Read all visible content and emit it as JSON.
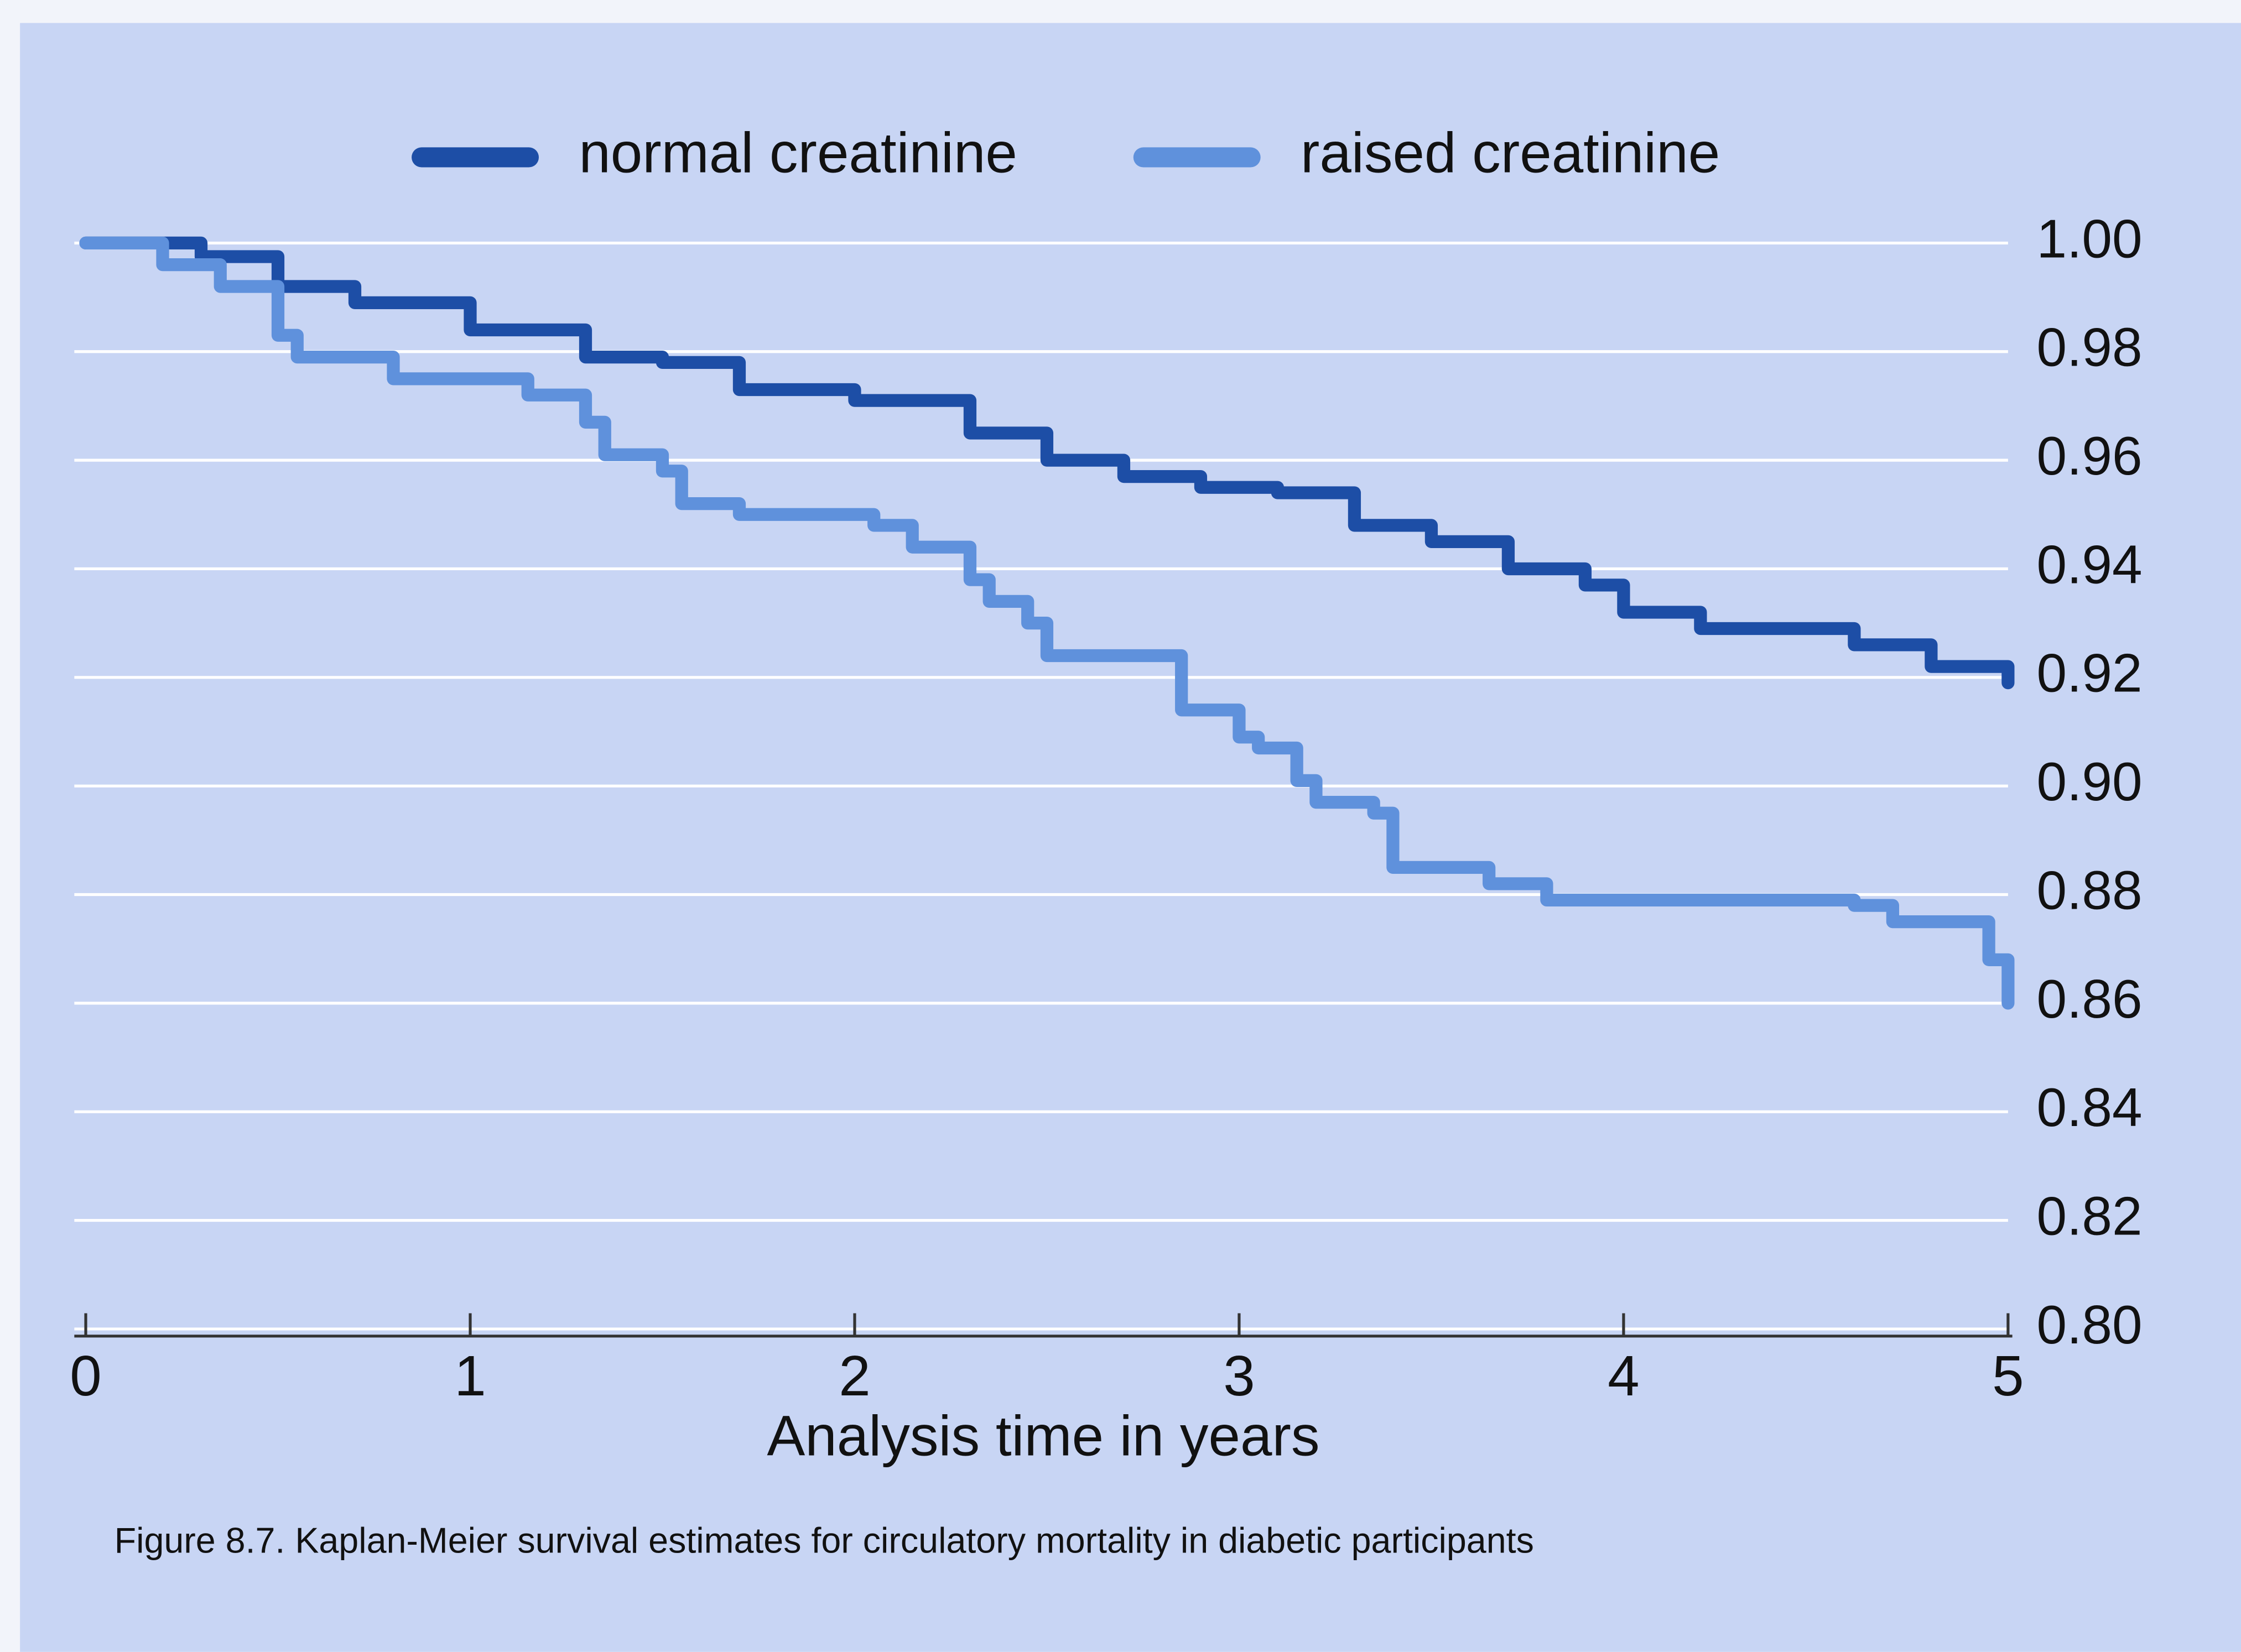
{
  "chart_data": {
    "type": "line",
    "step": true,
    "caption": "Figure 8.7. Kaplan-Meier survival estimates for circulatory mortality in diabetic participants",
    "x_label": "Analysis time in years",
    "xlim": [
      0,
      5
    ],
    "xticks": [
      0,
      1,
      2,
      3,
      4,
      5
    ],
    "ylim": [
      0.8,
      1
    ],
    "yticks": [
      {
        "value": 0.8,
        "label": "0.80"
      },
      0.82,
      0.84,
      0.86,
      0.88,
      {
        "value": 0.9,
        "label": "0.90"
      },
      0.92,
      0.94,
      0.96,
      0.98,
      {
        "value": 1,
        "label": "1.00"
      }
    ],
    "y_axis_side": "right",
    "grid": true,
    "legend": "top",
    "series": [
      {
        "name": "normal creatinine",
        "color": "#1d4ea6",
        "x": [
          0,
          0.1,
          0.3,
          0.5,
          0.7,
          1.0,
          1.3,
          1.5,
          1.7,
          2.0,
          2.3,
          2.5,
          2.7,
          2.9,
          3.1,
          3.3,
          3.5,
          3.7,
          3.9,
          4.0,
          4.2,
          4.4,
          4.6,
          4.8,
          5.0
        ],
        "values": [
          1.0,
          1.0,
          0.9975,
          0.992,
          0.989,
          0.984,
          0.979,
          0.978,
          0.973,
          0.971,
          0.965,
          0.96,
          0.957,
          0.955,
          0.954,
          0.948,
          0.945,
          0.94,
          0.937,
          0.932,
          0.929,
          0.929,
          0.926,
          0.922,
          0.919
        ]
      },
      {
        "name": "raised creatinine",
        "color": "#5f91dc",
        "x": [
          0,
          0.2,
          0.35,
          0.5,
          0.55,
          0.8,
          1.0,
          1.15,
          1.3,
          1.35,
          1.5,
          1.55,
          1.7,
          2.0,
          2.05,
          2.15,
          2.3,
          2.35,
          2.45,
          2.5,
          2.8,
          2.85,
          3.0,
          3.05,
          3.15,
          3.2,
          3.35,
          3.4,
          3.65,
          3.8,
          4.6,
          4.7,
          4.9,
          4.95,
          5.0
        ],
        "values": [
          1.0,
          0.996,
          0.992,
          0.983,
          0.979,
          0.975,
          0.975,
          0.972,
          0.967,
          0.961,
          0.958,
          0.952,
          0.95,
          0.95,
          0.948,
          0.944,
          0.938,
          0.934,
          0.93,
          0.924,
          0.924,
          0.914,
          0.909,
          0.907,
          0.901,
          0.897,
          0.895,
          0.885,
          0.882,
          0.879,
          0.878,
          0.875,
          0.875,
          0.868,
          0.86
        ]
      }
    ]
  }
}
